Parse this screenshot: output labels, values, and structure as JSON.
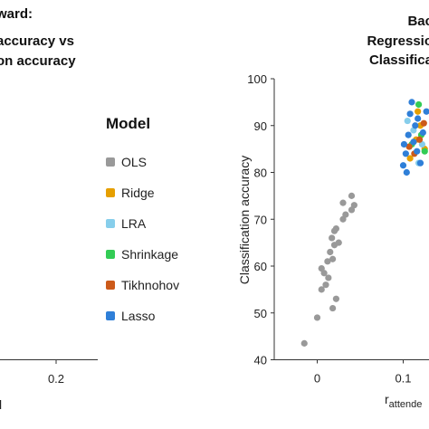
{
  "chart_data": [
    {
      "type": "scatter",
      "panel": "left",
      "title_lines": [
        "ward:",
        "accuracy vs",
        "on accuracy"
      ],
      "xlabel": "l",
      "ylabel": "",
      "x_ticks": [
        "0.2"
      ],
      "series": []
    },
    {
      "type": "scatter",
      "panel": "right",
      "title_lines": [
        "Bac",
        "Regressio",
        "Classifica"
      ],
      "xlabel": "r",
      "xlabel_sub": "attende",
      "ylabel": "Classification accuracy",
      "xlim": [
        -0.05,
        0.13
      ],
      "ylim": [
        40,
        100
      ],
      "x_ticks": [
        0,
        0.1
      ],
      "y_ticks": [
        40,
        50,
        60,
        70,
        80,
        90,
        100
      ],
      "grid": false,
      "series": [
        {
          "name": "OLS",
          "color": "#999999",
          "points": [
            {
              "x": -0.015,
              "y": 43.5
            },
            {
              "x": 0.0,
              "y": 49
            },
            {
              "x": 0.005,
              "y": 55
            },
            {
              "x": 0.01,
              "y": 56
            },
            {
              "x": 0.013,
              "y": 57.5
            },
            {
              "x": 0.008,
              "y": 58.5
            },
            {
              "x": 0.005,
              "y": 59.5
            },
            {
              "x": 0.012,
              "y": 61
            },
            {
              "x": 0.015,
              "y": 63
            },
            {
              "x": 0.018,
              "y": 61.5
            },
            {
              "x": 0.02,
              "y": 64.5
            },
            {
              "x": 0.025,
              "y": 65
            },
            {
              "x": 0.017,
              "y": 66
            },
            {
              "x": 0.02,
              "y": 67.5
            },
            {
              "x": 0.022,
              "y": 68
            },
            {
              "x": 0.03,
              "y": 70
            },
            {
              "x": 0.033,
              "y": 71
            },
            {
              "x": 0.04,
              "y": 72
            },
            {
              "x": 0.043,
              "y": 73
            },
            {
              "x": 0.04,
              "y": 75
            },
            {
              "x": 0.03,
              "y": 73.5
            },
            {
              "x": 0.018,
              "y": 51
            },
            {
              "x": 0.022,
              "y": 53
            }
          ]
        },
        {
          "name": "Ridge",
          "color": "#E69F00",
          "points": [
            {
              "x": 0.115,
              "y": 87
            },
            {
              "x": 0.12,
              "y": 90
            },
            {
              "x": 0.125,
              "y": 85
            },
            {
              "x": 0.108,
              "y": 83
            },
            {
              "x": 0.117,
              "y": 93
            }
          ]
        },
        {
          "name": "LRA",
          "color": "#87CEEB",
          "points": [
            {
              "x": 0.112,
              "y": 89
            },
            {
              "x": 0.122,
              "y": 86
            },
            {
              "x": 0.118,
              "y": 82
            },
            {
              "x": 0.105,
              "y": 91
            }
          ]
        },
        {
          "name": "Shrinkage",
          "color": "#33CC55",
          "points": [
            {
              "x": 0.118,
              "y": 94.5
            },
            {
              "x": 0.125,
              "y": 84.5
            },
            {
              "x": 0.11,
              "y": 86
            },
            {
              "x": 0.121,
              "y": 88
            }
          ]
        },
        {
          "name": "Tikhnohov",
          "color": "#CC5A1A",
          "points": [
            {
              "x": 0.107,
              "y": 85.5
            },
            {
              "x": 0.119,
              "y": 87
            },
            {
              "x": 0.124,
              "y": 90.5
            },
            {
              "x": 0.113,
              "y": 84
            }
          ]
        },
        {
          "name": "Lasso",
          "color": "#2F7FD8",
          "points": [
            {
              "x": 0.1,
              "y": 81.5
            },
            {
              "x": 0.103,
              "y": 84
            },
            {
              "x": 0.101,
              "y": 86
            },
            {
              "x": 0.106,
              "y": 88
            },
            {
              "x": 0.108,
              "y": 92.5
            },
            {
              "x": 0.11,
              "y": 95
            },
            {
              "x": 0.114,
              "y": 90
            },
            {
              "x": 0.116,
              "y": 84.5
            },
            {
              "x": 0.12,
              "y": 82
            },
            {
              "x": 0.123,
              "y": 88.5
            },
            {
              "x": 0.127,
              "y": 93
            },
            {
              "x": 0.104,
              "y": 80
            },
            {
              "x": 0.112,
              "y": 86.5
            },
            {
              "x": 0.117,
              "y": 91.5
            }
          ]
        }
      ]
    }
  ],
  "legend": {
    "title": "Model",
    "placement": "center",
    "items": [
      {
        "label": "OLS",
        "color": "#999999"
      },
      {
        "label": "Ridge",
        "color": "#E69F00"
      },
      {
        "label": "LRA",
        "color": "#87CEEB"
      },
      {
        "label": "Shrinkage",
        "color": "#33CC55"
      },
      {
        "label": "Tikhnohov",
        "color": "#CC5A1A"
      },
      {
        "label": "Lasso",
        "color": "#2F7FD8"
      }
    ]
  }
}
